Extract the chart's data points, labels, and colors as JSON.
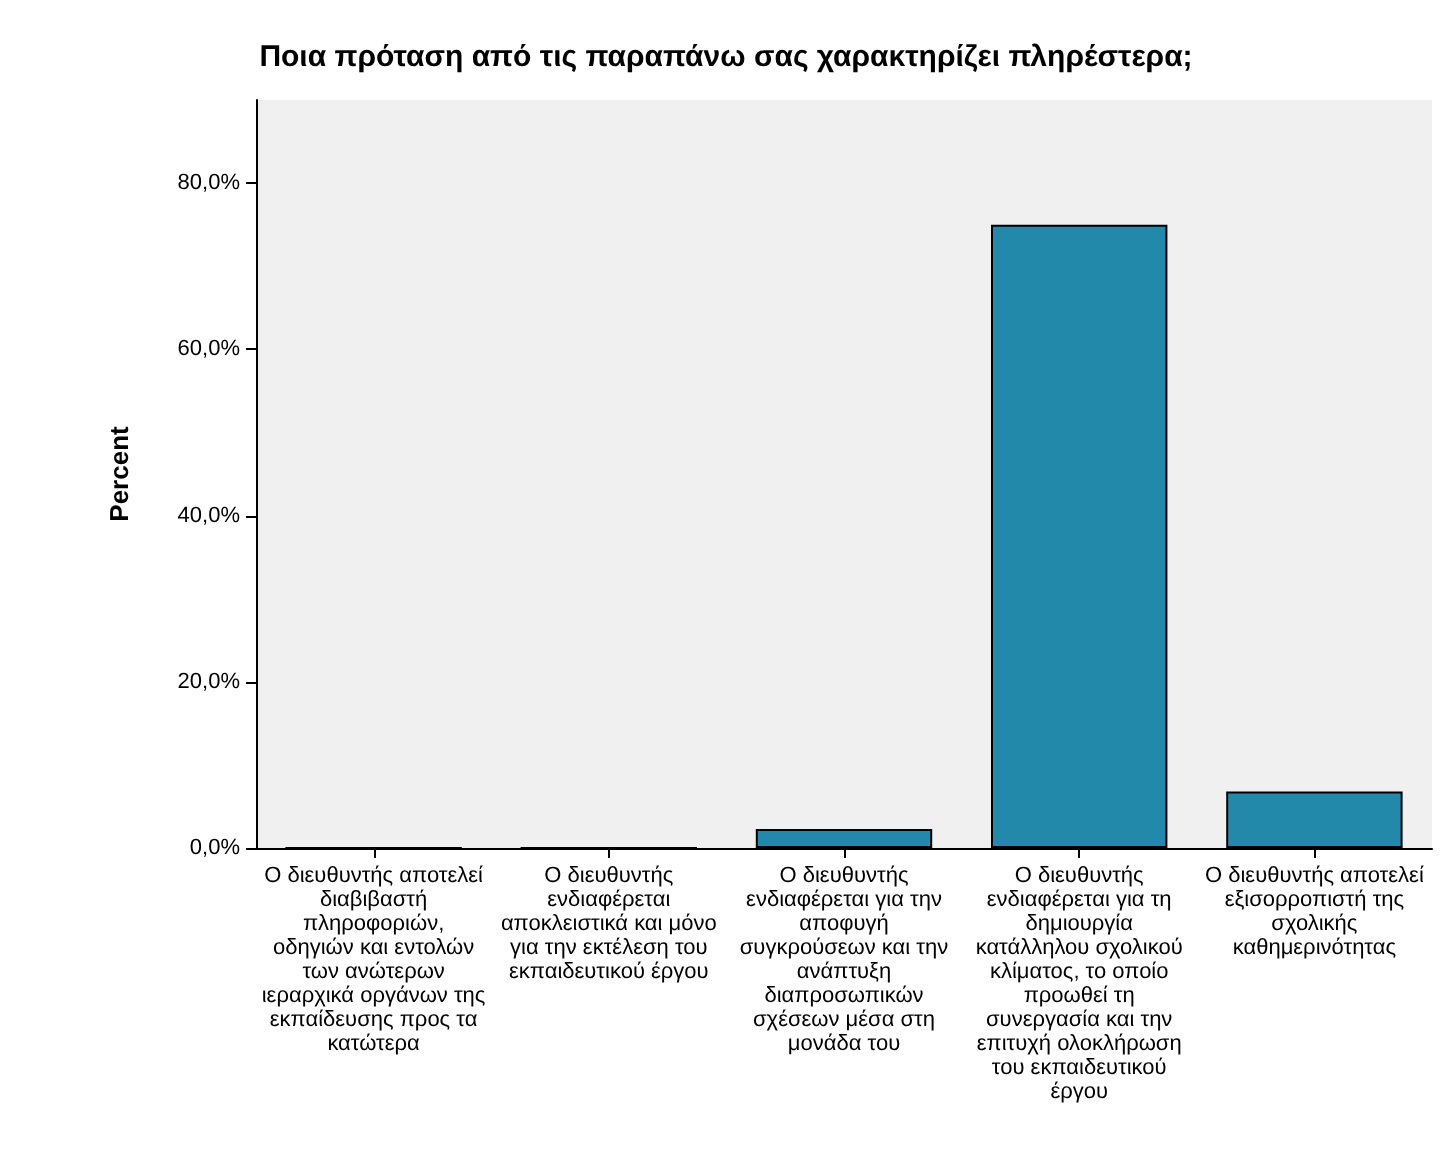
{
  "chart_data": {
    "type": "bar",
    "title": "Ποια πρόταση από τις παραπάνω σας χαρακτηρίζει πληρέστερα;",
    "ylabel": "Percent",
    "categories": [
      "Ο διευθυντής αποτελεί διαβιβαστή πληροφοριών, οδηγιών και εντολών των ανώτερων ιεραρχικά οργάνων της εκπαίδευσης προς τα κατώτερα",
      "Ο διευθυντής ενδιαφέρεται αποκλειστικά και μόνο για την εκτέλεση του εκπαιδευτικού έργου",
      "Ο διευθυντής ενδιαφέρεται για την αποφυγή συγκρούσεων και την ανάπτυξη διαπροσωπικών σχέσεων μέσα στη μονάδα του",
      "Ο διευθυντής ενδιαφέρεται για τη δημιουργία κατάλληλου σχολικού κλίματος, το οποίο προωθεί τη συνεργασία και την επιτυχή ολοκλήρωση του εκπαιδευτικού έργου",
      "Ο διευθυντής αποτελεί εξισορροπιστή της σχολικής καθημερινότητας"
    ],
    "values": [
      0,
      0,
      2.3,
      75,
      6.8
    ],
    "color": "#2389ab",
    "ylim": [
      0,
      90
    ],
    "yticks": [
      {
        "value": 0,
        "label": "0,0%"
      },
      {
        "value": 20,
        "label": "20,0%"
      },
      {
        "value": 40,
        "label": "40,0%"
      },
      {
        "value": 60,
        "label": "60,0%"
      },
      {
        "value": 80,
        "label": "80,0%"
      }
    ],
    "grid": false
  }
}
